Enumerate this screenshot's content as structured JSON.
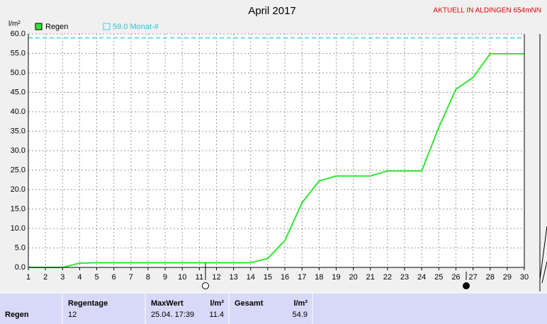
{
  "chart_data": {
    "type": "line",
    "title": "April 2017",
    "badge": "AKTUELL IN ALDINGEN 654mNN",
    "y_label": "l/m²",
    "x": [
      1,
      2,
      3,
      4,
      5,
      6,
      7,
      8,
      9,
      10,
      11,
      12,
      13,
      14,
      15,
      16,
      17,
      18,
      19,
      20,
      21,
      22,
      23,
      24,
      25,
      26,
      27,
      28,
      29,
      30
    ],
    "series": [
      {
        "name": "Regen",
        "color": "#33e633",
        "values": [
          0,
          0,
          0,
          1.1,
          1.2,
          1.2,
          1.2,
          1.2,
          1.2,
          1.2,
          1.2,
          1.2,
          1.2,
          1.2,
          2.3,
          6.9,
          16.6,
          22.2,
          23.5,
          23.5,
          23.5,
          24.8,
          24.8,
          24.8,
          36.0,
          45.8,
          48.8,
          54.9,
          54.9,
          54.9
        ]
      }
    ],
    "monthly_average": {
      "value": 59,
      "label": "59.0 Monat-#",
      "color": "#33d6e6"
    },
    "xlim": [
      1,
      30
    ],
    "ylim": [
      0,
      60
    ],
    "xticks": [
      1,
      2,
      3,
      4,
      5,
      6,
      7,
      8,
      9,
      10,
      11,
      12,
      13,
      14,
      15,
      16,
      17,
      18,
      19,
      20,
      21,
      22,
      23,
      24,
      25,
      26,
      27,
      28,
      29,
      30
    ],
    "yticks": [
      {
        "value": 0,
        "label": "0.0"
      },
      {
        "value": 5,
        "label": "5.0"
      },
      {
        "value": 10,
        "label": "10.0"
      },
      {
        "value": 15,
        "label": "15.0"
      },
      {
        "value": 20,
        "label": "20.0"
      },
      {
        "value": 25,
        "label": "25.0"
      },
      {
        "value": 30,
        "label": "30.0"
      },
      {
        "value": 35,
        "label": "35.0"
      },
      {
        "value": 40,
        "label": "40.0"
      },
      {
        "value": 45,
        "label": "45.0"
      },
      {
        "value": 50,
        "label": "50.0"
      },
      {
        "value": 55,
        "label": "55.0"
      },
      {
        "value": 60,
        "label": "60.0"
      }
    ],
    "grid": true
  },
  "table": {
    "row_label": "Regen",
    "regentage_header": "Regentage",
    "regentage": 12,
    "maxwert_header": "MaxWert",
    "maxwert_time": "25.04. 17:39",
    "maxwert_unit": "l/m²",
    "maxwert": 11.4,
    "gesamt_header": "Gesamt",
    "gesamt_unit": "l/m²",
    "gesamt": 54.9
  }
}
